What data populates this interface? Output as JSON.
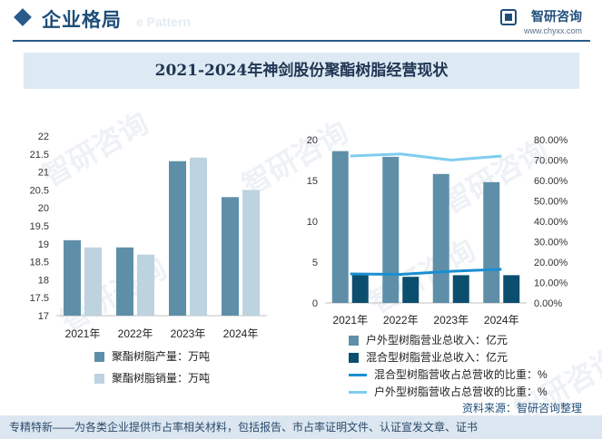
{
  "header": {
    "section_title": "企业格局",
    "watermark_text": "e Pattern",
    "brand_name": "智研咨询",
    "brand_url": "www.chyxx.com"
  },
  "title": "2021-2024年神剑股份聚酯树脂经营现状",
  "watermark": "智研咨询",
  "source": {
    "prefix": "资料来源：",
    "name": "智研咨询整理"
  },
  "footer": "专精特新——为各类企业提供市占率相关材料，包括报告、市占率证明文件、认证宣发文章、证书",
  "colors": {
    "bar_dark": "#5f8fa8",
    "bar_light": "#bdd3df",
    "bar_navy": "#0c4e6e",
    "line_dark": "#1a8fd1",
    "line_light": "#7fcdef",
    "title_bg": "#dde9f3",
    "footer_bg": "#dce6f0"
  },
  "chart_data": [
    {
      "type": "bar",
      "categories": [
        "2021年",
        "2022年",
        "2023年",
        "2024年"
      ],
      "series": [
        {
          "name": "聚酯树脂产量：万吨",
          "values": [
            19.1,
            18.9,
            21.3,
            20.3
          ]
        },
        {
          "name": "聚酯树脂销量：万吨",
          "values": [
            18.9,
            18.7,
            21.4,
            20.5
          ]
        }
      ],
      "ylim": [
        17,
        22
      ],
      "yticks": [
        "17",
        "17.5",
        "18",
        "18.5",
        "19",
        "19.5",
        "20",
        "20.5",
        "21",
        "21.5",
        "22"
      ],
      "legend": "bottom",
      "grid": false
    },
    {
      "type": "bar",
      "categories": [
        "2021年",
        "2022年",
        "2023年",
        "2024年"
      ],
      "series": [
        {
          "name": "户外型树脂营业总收入：亿元",
          "type": "bar",
          "axis": "left",
          "values": [
            18.6,
            17.9,
            15.8,
            14.8
          ]
        },
        {
          "name": "混合型树脂营业总收入：亿元",
          "type": "bar",
          "axis": "left",
          "values": [
            3.4,
            3.2,
            3.4,
            3.4
          ]
        },
        {
          "name": "混合型树脂营收占总营收的比重：%",
          "type": "line",
          "axis": "right",
          "values": [
            14.2,
            14.0,
            15.5,
            16.5
          ]
        },
        {
          "name": "户外型树脂营收占总营收的比重：%",
          "type": "line",
          "axis": "right",
          "values": [
            72.0,
            73.0,
            70.0,
            72.0
          ]
        }
      ],
      "ylim": [
        0,
        20
      ],
      "yticks": [
        "0",
        "5",
        "10",
        "15",
        "20"
      ],
      "y2lim": [
        0,
        80
      ],
      "y2ticks": [
        "0.00%",
        "10.00%",
        "20.00%",
        "30.00%",
        "40.00%",
        "50.00%",
        "60.00%",
        "70.00%",
        "80.00%"
      ],
      "legend": "bottom",
      "grid": false
    }
  ]
}
